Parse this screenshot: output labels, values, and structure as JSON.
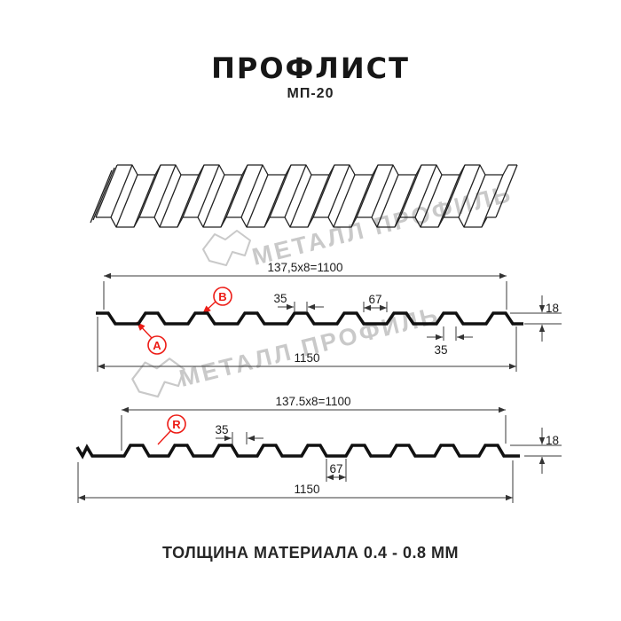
{
  "header": {
    "title": "ПРОФЛИСТ",
    "subtitle": "МП-20"
  },
  "watermark": {
    "text": "МЕТАЛЛ ПРОФИЛЬ"
  },
  "sections": {
    "top": {
      "labels": {
        "a": "A",
        "b": "B"
      },
      "dims": {
        "pitch": "137,5x8=1100",
        "rib_top": "35",
        "valley": "67",
        "height": "18",
        "rib_bottom": "35",
        "overall": "1150"
      }
    },
    "bottom": {
      "labels": {
        "r": "R"
      },
      "dims": {
        "pitch": "137.5x8=1100",
        "rib_top": "35",
        "height": "18",
        "valley": "67",
        "overall": "1150"
      }
    }
  },
  "footer": {
    "note": "ТОЛЩИНА МАТЕРИАЛА 0.4 - 0.8 ММ"
  },
  "colors": {
    "accent_red": "#ed1c16",
    "line": "#1a1a1a",
    "watermark_gray": "#c9c9c9"
  }
}
